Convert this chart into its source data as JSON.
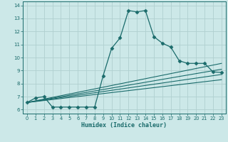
{
  "xlabel": "Humidex (Indice chaleur)",
  "xlim": [
    -0.5,
    23.5
  ],
  "ylim": [
    5.7,
    14.3
  ],
  "xticks": [
    0,
    1,
    2,
    3,
    4,
    5,
    6,
    7,
    8,
    9,
    10,
    11,
    12,
    13,
    14,
    15,
    16,
    17,
    18,
    19,
    20,
    21,
    22,
    23
  ],
  "yticks": [
    6,
    7,
    8,
    9,
    10,
    11,
    12,
    13,
    14
  ],
  "bg_color": "#cce8e8",
  "line_color": "#1a6b6b",
  "grid_color": "#b0d0d0",
  "series": {
    "main": {
      "x": [
        0,
        1,
        2,
        3,
        4,
        5,
        6,
        7,
        8,
        9,
        10,
        11,
        12,
        13,
        14,
        15,
        16,
        17,
        18,
        19,
        20,
        21,
        22,
        23
      ],
      "y": [
        6.55,
        6.9,
        7.0,
        6.2,
        6.2,
        6.2,
        6.2,
        6.2,
        6.2,
        8.6,
        10.7,
        11.5,
        13.6,
        13.5,
        13.6,
        11.6,
        11.1,
        10.8,
        9.75,
        9.55,
        9.55,
        9.55,
        8.9,
        8.85
      ]
    },
    "line1": {
      "x": [
        0,
        23
      ],
      "y": [
        6.55,
        9.55
      ]
    },
    "line2": {
      "x": [
        0,
        23
      ],
      "y": [
        6.55,
        9.1
      ]
    },
    "line3": {
      "x": [
        0,
        23
      ],
      "y": [
        6.55,
        8.7
      ]
    },
    "line4": {
      "x": [
        0,
        23
      ],
      "y": [
        6.55,
        8.3
      ]
    }
  }
}
